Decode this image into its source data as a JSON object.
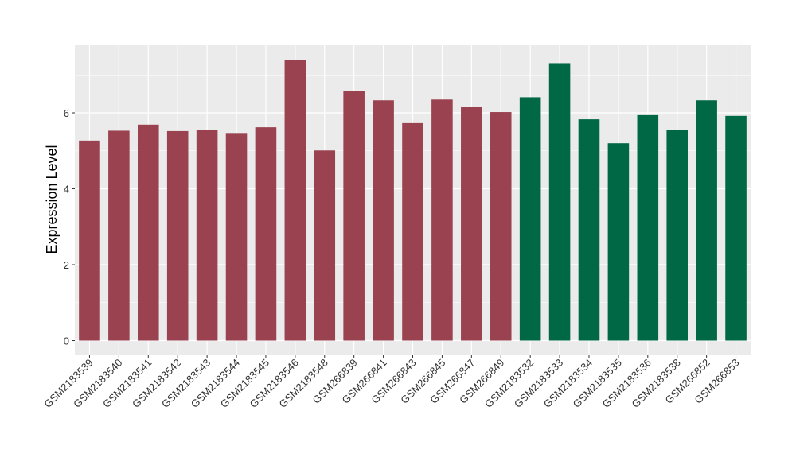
{
  "chart_data": {
    "type": "bar",
    "categories": [
      "GSM2183539",
      "GSM2183540",
      "GSM2183541",
      "GSM2183542",
      "GSM2183543",
      "GSM2183544",
      "GSM2183545",
      "GSM2183546",
      "GSM2183548",
      "GSM266839",
      "GSM266841",
      "GSM266843",
      "GSM266845",
      "GSM266847",
      "GSM266849",
      "GSM2183532",
      "GSM2183533",
      "GSM2183534",
      "GSM2183535",
      "GSM2183536",
      "GSM2183538",
      "GSM266852",
      "GSM266853"
    ],
    "values": [
      5.27,
      5.53,
      5.69,
      5.52,
      5.56,
      5.47,
      5.62,
      7.39,
      5.01,
      6.58,
      6.33,
      5.73,
      6.35,
      6.16,
      6.02,
      6.41,
      7.31,
      5.83,
      5.2,
      5.94,
      5.54,
      6.33,
      5.92
    ],
    "group_colors": [
      "#9a4250",
      "#9a4250",
      "#9a4250",
      "#9a4250",
      "#9a4250",
      "#9a4250",
      "#9a4250",
      "#9a4250",
      "#9a4250",
      "#9a4250",
      "#9a4250",
      "#9a4250",
      "#9a4250",
      "#9a4250",
      "#9a4250",
      "#006845",
      "#006845",
      "#006845",
      "#006845",
      "#006845",
      "#006845",
      "#006845",
      "#006845"
    ],
    "title": "",
    "xlabel": "",
    "ylabel": "Expression Level",
    "ylim": [
      0,
      7.8
    ],
    "yticks": [
      0,
      2,
      4,
      6
    ],
    "grid": true,
    "panel_background": "#ebebeb"
  }
}
